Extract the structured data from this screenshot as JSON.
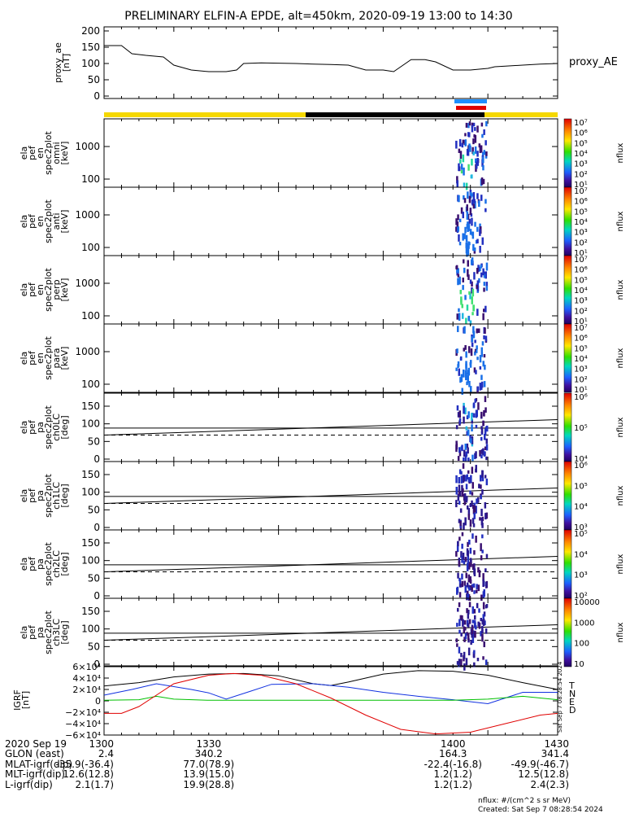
{
  "title": "PRELIMINARY ELFIN-A EPDE, alt=450km, 2020-09-19 13:00 to 14:30",
  "colors": {
    "yellow": "#f5d800",
    "black": "#000000",
    "blue_bar": "#1e8fff",
    "red_bar": "#e00000"
  },
  "proxy_ae": {
    "ylabel": [
      "proxy_ae",
      "[nT]"
    ],
    "right_label": "proxy_AE",
    "yticks": [
      "200",
      "150",
      "100",
      "50",
      "0"
    ],
    "ylim": [
      0,
      200
    ]
  },
  "panels": [
    {
      "ylabel": [
        "ela",
        "pef",
        "en",
        "spec2plot",
        "omni",
        "[keV]"
      ],
      "yticks": [
        "1000",
        "100"
      ],
      "type": "energy"
    },
    {
      "ylabel": [
        "ela",
        "pef",
        "en",
        "spec2plot",
        "anti",
        "[keV]"
      ],
      "yticks": [
        "1000",
        "100"
      ],
      "type": "energy"
    },
    {
      "ylabel": [
        "ela",
        "pef",
        "en",
        "spec2plot",
        "perp",
        "[keV]"
      ],
      "yticks": [
        "1000",
        "100"
      ],
      "type": "energy"
    },
    {
      "ylabel": [
        "ela",
        "pef",
        "en",
        "spec2plot",
        "para",
        "[keV]"
      ],
      "yticks": [
        "1000",
        "100"
      ],
      "type": "energy"
    },
    {
      "ylabel": [
        "ela",
        "pef",
        "pa",
        "spec2plot",
        "ch0LC",
        "[deg]"
      ],
      "yticks": [
        "150",
        "100",
        "50",
        "0"
      ],
      "type": "pa"
    },
    {
      "ylabel": [
        "ela",
        "pef",
        "pa",
        "spec2plot",
        "ch1LC",
        "[deg]"
      ],
      "yticks": [
        "150",
        "100",
        "50",
        "0"
      ],
      "type": "pa"
    },
    {
      "ylabel": [
        "ela",
        "pef",
        "pa",
        "spec2plot",
        "ch2LC",
        "[deg]"
      ],
      "yticks": [
        "150",
        "100",
        "50",
        "0"
      ],
      "type": "pa"
    },
    {
      "ylabel": [
        "ela",
        "pef",
        "pa",
        "spec2plot",
        "ch3LC",
        "[deg]"
      ],
      "yticks": [
        "150",
        "100",
        "50",
        "0"
      ],
      "type": "pa"
    }
  ],
  "colorbars": [
    {
      "labels": [
        "10⁷",
        "10⁶",
        "10⁵",
        "10⁴",
        "10³",
        "10²",
        "10¹"
      ],
      "units": "nflux"
    },
    {
      "labels": [
        "10⁷",
        "10⁶",
        "10⁵",
        "10⁴",
        "10³",
        "10²",
        "10¹"
      ],
      "units": "nflux"
    },
    {
      "labels": [
        "10⁷",
        "10⁶",
        "10⁵",
        "10⁴",
        "10³",
        "10²",
        "10¹"
      ],
      "units": "nflux"
    },
    {
      "labels": [
        "10⁷",
        "10⁶",
        "10⁵",
        "10⁴",
        "10³",
        "10²",
        "10¹"
      ],
      "units": "nflux"
    },
    {
      "labels": [
        "10⁶",
        "10⁵",
        "10⁴"
      ],
      "units": "nflux"
    },
    {
      "labels": [
        "10⁶",
        "10⁵",
        "10⁴",
        "10³"
      ],
      "units": "nflux"
    },
    {
      "labels": [
        "10⁵",
        "10⁴",
        "10³",
        "10²"
      ],
      "units": "nflux"
    },
    {
      "labels": [
        "10000",
        "1000",
        "100",
        "10"
      ],
      "units": "nflux"
    }
  ],
  "igrf": {
    "ylabel": [
      "IGRF",
      "[nT]"
    ],
    "yticks": [
      "6×10⁴",
      "4×10⁴",
      "2×10⁴",
      "0",
      "−2×10⁴",
      "−4×10⁴",
      "−6×10⁴"
    ],
    "legend": [
      {
        "label": "T",
        "color": "#000000"
      },
      {
        "label": "N",
        "color": "#1030e0"
      },
      {
        "label": "E",
        "color": "#00c000"
      },
      {
        "label": "D",
        "color": "#e00000"
      }
    ],
    "stamp": "Sat Sep  7 08:28:54 2024"
  },
  "chart_data": [
    {
      "type": "line",
      "name": "proxy_ae",
      "x": [
        1300,
        1305,
        1308,
        1312,
        1317,
        1320,
        1325,
        1330,
        1335,
        1338,
        1340,
        1345,
        1350,
        1355,
        1360,
        1365,
        1370,
        1375,
        1380,
        1383,
        1388,
        1392,
        1395,
        1400,
        1405,
        1410,
        1412,
        1415,
        1420,
        1425,
        1430
      ],
      "y": [
        155,
        155,
        130,
        125,
        120,
        95,
        80,
        75,
        75,
        80,
        100,
        102,
        101,
        100,
        98,
        97,
        95,
        80,
        80,
        75,
        112,
        112,
        105,
        80,
        80,
        85,
        90,
        92,
        95,
        98,
        100
      ],
      "ylim": [
        0,
        200
      ]
    },
    {
      "type": "line",
      "name": "igrf",
      "xlim": [
        1300,
        1430
      ],
      "ylim": [
        -60000,
        60000
      ],
      "series": [
        {
          "name": "T",
          "x": [
            1300,
            1310,
            1320,
            1330,
            1340,
            1350,
            1360,
            1365,
            1370,
            1380,
            1390,
            1400,
            1410,
            1420,
            1430
          ],
          "y": [
            26000,
            32000,
            42000,
            47000,
            48000,
            44000,
            30000,
            27000,
            33000,
            47000,
            53000,
            52000,
            45000,
            32000,
            20000
          ]
        },
        {
          "name": "N",
          "x": [
            1300,
            1308,
            1315,
            1325,
            1330,
            1335,
            1342,
            1348,
            1360,
            1370,
            1380,
            1390,
            1400,
            1410,
            1420,
            1430
          ],
          "y": [
            10000,
            20000,
            30000,
            20000,
            14000,
            3000,
            17000,
            29000,
            30000,
            24000,
            15000,
            8000,
            2000,
            -5000,
            15000,
            15000
          ]
        },
        {
          "name": "E",
          "x": [
            1300,
            1310,
            1315,
            1320,
            1330,
            1345,
            1360,
            1370,
            1390,
            1400,
            1410,
            1420,
            1430
          ],
          "y": [
            1000,
            2000,
            8000,
            3000,
            1000,
            1000,
            1000,
            1000,
            1000,
            1000,
            3000,
            8000,
            2000
          ]
        },
        {
          "name": "D",
          "x": [
            1300,
            1305,
            1310,
            1315,
            1320,
            1330,
            1337,
            1345,
            1355,
            1365,
            1375,
            1385,
            1395,
            1405,
            1415,
            1425,
            1430
          ],
          "y": [
            -22000,
            -22000,
            -10000,
            10000,
            30000,
            45000,
            48000,
            45000,
            30000,
            5000,
            -25000,
            -50000,
            -58000,
            -55000,
            -40000,
            -25000,
            -22000
          ]
        }
      ]
    }
  ],
  "footer": {
    "row_labels": [
      "2020 Sep 19",
      "GLON (east)",
      "MLAT-igrf(dip)",
      "MLT-igrf(dip)",
      "L-igrf(dip)"
    ],
    "columns": [
      {
        "time": "1300",
        "values": [
          "2.4",
          "-35.9(-36.4)",
          "12.6(12.8)",
          "2.1(1.7)"
        ]
      },
      {
        "time": "1330",
        "values": [
          "340.2",
          "77.0(78.9)",
          "13.9(15.0)",
          "19.9(28.8)"
        ]
      },
      {
        "time": "1400",
        "values": [
          "164.3",
          "-22.4(-16.8)",
          "1.2(1.2)",
          "1.2(1.2)"
        ]
      },
      {
        "time": "1430",
        "values": [
          "341.4",
          "-49.9(-46.7)",
          "12.5(12.8)",
          "2.4(2.3)"
        ]
      }
    ],
    "units_note": "nflux: #/(cm^2 s sr MeV)",
    "created": "Created: Sat Sep  7 08:28:54 2024"
  }
}
